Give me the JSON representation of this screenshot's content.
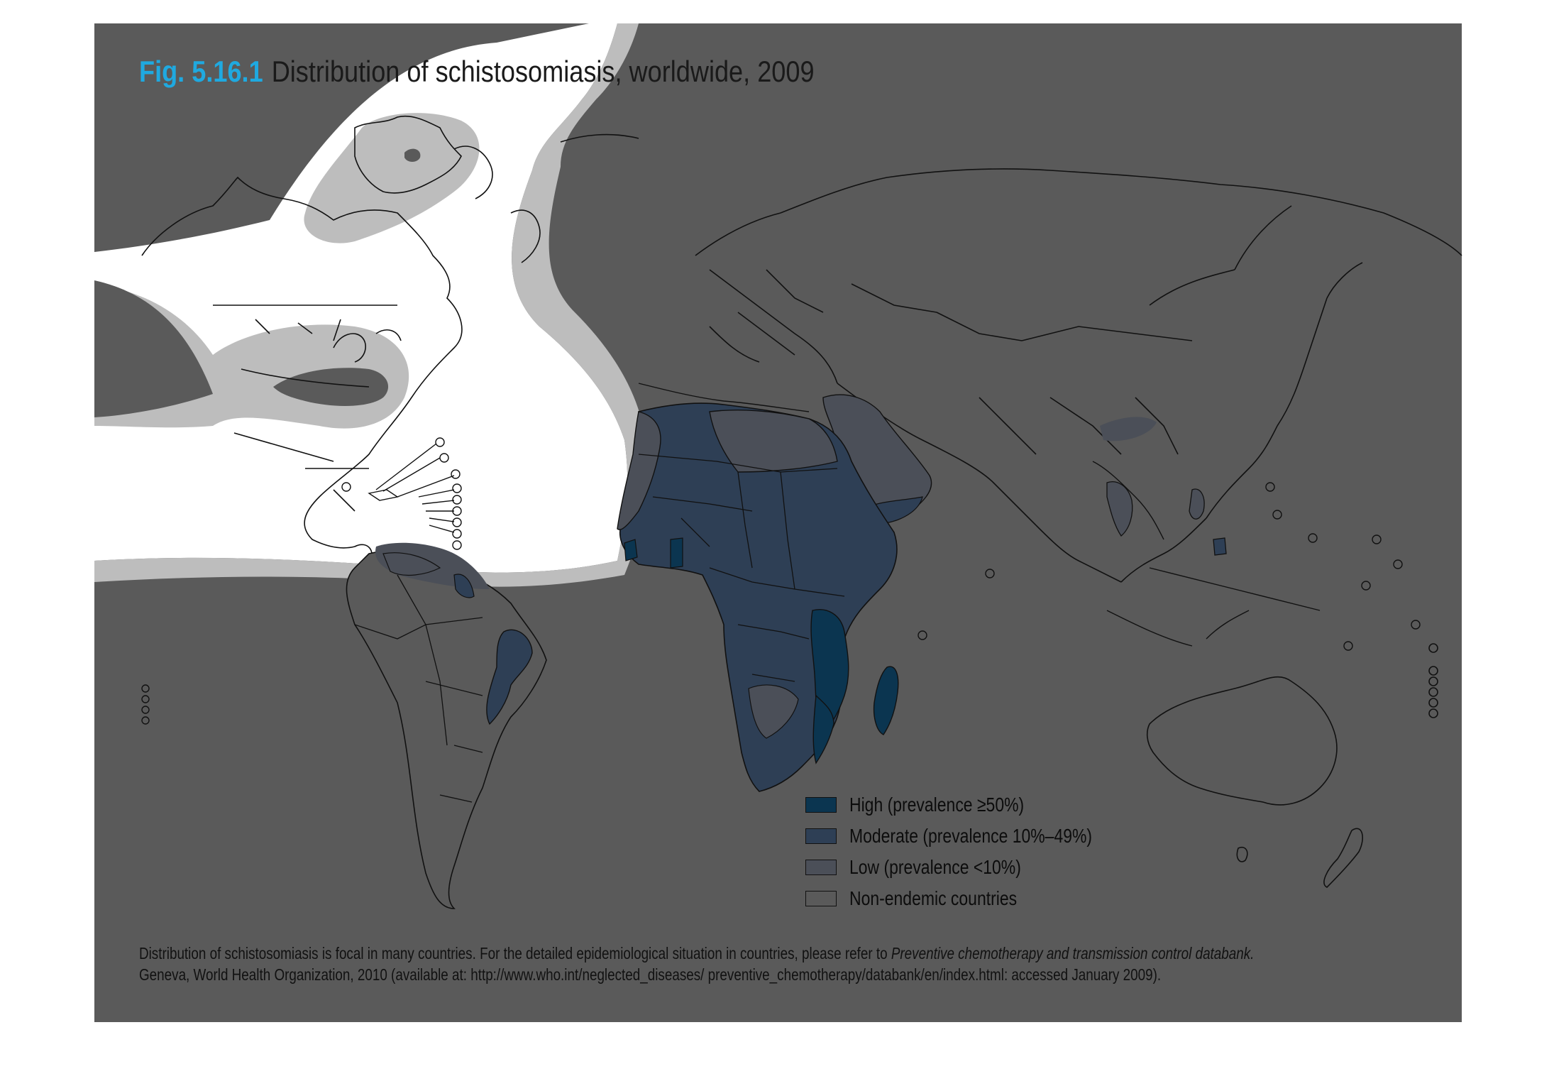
{
  "figure": {
    "number": "Fig. 5.16.1",
    "caption": "Distribution of schistosomiasis, worldwide, 2009"
  },
  "colors": {
    "background": "#5a5a5a",
    "uncovered_area": "#ffffff",
    "halo": "#bdbdbd",
    "high": "#0b3550",
    "moderate": "#2e3f55",
    "low": "#4b4f58",
    "non_endemic": "#5a5a5a",
    "boundary": "#000000",
    "title_accent": "#1fa9e0"
  },
  "legend": {
    "items": [
      {
        "key": "high",
        "label": "High (prevalence ≥50%)",
        "color": "#0b3550"
      },
      {
        "key": "moderate",
        "label": "Moderate (prevalence 10%–49%)",
        "color": "#2e3f55"
      },
      {
        "key": "low",
        "label": "Low (prevalence <10%)",
        "color": "#4b4f58"
      },
      {
        "key": "non_endemic",
        "label": "Non-endemic countries",
        "color": "#5a5a5a"
      }
    ]
  },
  "footnote": {
    "line1_text": "Distribution of schistosomiasis is focal in many countries. For the detailed epidemiological situation in countries, please refer to ",
    "line1_italic": "Preventive chemotherapy and transmission control databank.",
    "line2": "Geneva, World Health Organization, 2010 (available at: http://www.who.int/neglected_diseases/ preventive_chemotherapy/databank/en/index.html: accessed January 2009)."
  }
}
